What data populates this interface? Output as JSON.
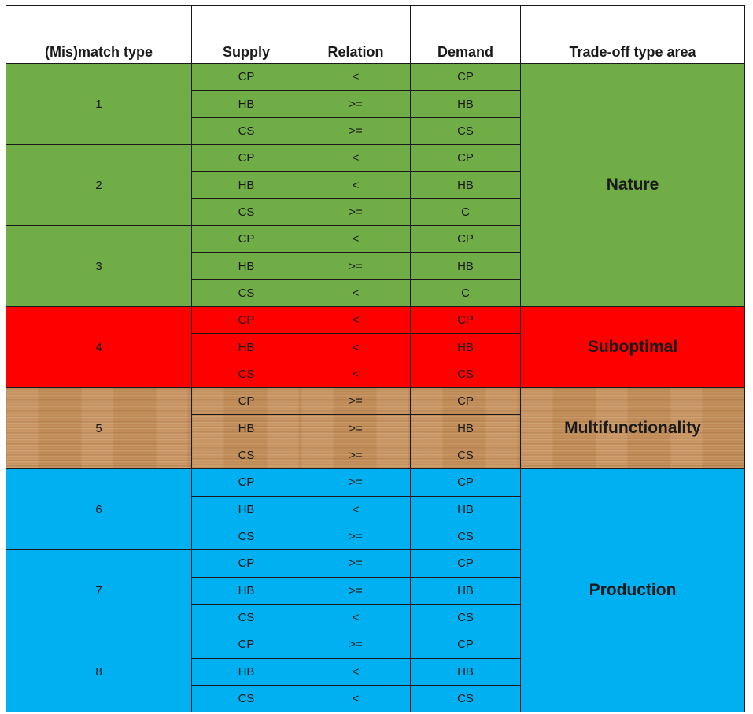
{
  "headers": {
    "mismatch_type": "(Mis)match type",
    "supply": "Supply",
    "relation": "Relation",
    "demand": "Demand",
    "trade_off_area": "Trade-off type area"
  },
  "colors": {
    "Nature": "#70ad47",
    "Suboptimal": "#ff0000",
    "Multifunctionality": "#c8945f",
    "Production": "#00b0f0"
  },
  "area_groups": [
    {
      "area": "Nature",
      "types": [
        {
          "type": "1",
          "rows": [
            {
              "supply": "CP",
              "relation": "<",
              "demand": "CP"
            },
            {
              "supply": "HB",
              "relation": ">=",
              "demand": "HB"
            },
            {
              "supply": "CS",
              "relation": ">=",
              "demand": "CS"
            }
          ]
        },
        {
          "type": "2",
          "rows": [
            {
              "supply": "CP",
              "relation": "<",
              "demand": "CP"
            },
            {
              "supply": "HB",
              "relation": "<",
              "demand": "HB"
            },
            {
              "supply": "CS",
              "relation": ">=",
              "demand": "C"
            }
          ]
        },
        {
          "type": "3",
          "rows": [
            {
              "supply": "CP",
              "relation": "<",
              "demand": "CP"
            },
            {
              "supply": "HB",
              "relation": ">=",
              "demand": "HB"
            },
            {
              "supply": "CS",
              "relation": "<",
              "demand": "C"
            }
          ]
        }
      ]
    },
    {
      "area": "Suboptimal",
      "types": [
        {
          "type": "4",
          "rows": [
            {
              "supply": "CP",
              "relation": "<",
              "demand": "CP"
            },
            {
              "supply": "HB",
              "relation": "<",
              "demand": "HB"
            },
            {
              "supply": "CS",
              "relation": "<",
              "demand": "CS"
            }
          ]
        }
      ]
    },
    {
      "area": "Multifunctionality",
      "types": [
        {
          "type": "5",
          "rows": [
            {
              "supply": "CP",
              "relation": ">=",
              "demand": "CP"
            },
            {
              "supply": "HB",
              "relation": ">=",
              "demand": "HB"
            },
            {
              "supply": "CS",
              "relation": ">=",
              "demand": "CS"
            }
          ]
        }
      ]
    },
    {
      "area": "Production",
      "types": [
        {
          "type": "6",
          "rows": [
            {
              "supply": "CP",
              "relation": ">=",
              "demand": "CP"
            },
            {
              "supply": "HB",
              "relation": "<",
              "demand": "HB"
            },
            {
              "supply": "CS",
              "relation": ">=",
              "demand": "CS"
            }
          ]
        },
        {
          "type": "7",
          "rows": [
            {
              "supply": "CP",
              "relation": ">=",
              "demand": "CP"
            },
            {
              "supply": "HB",
              "relation": ">=",
              "demand": "HB"
            },
            {
              "supply": "CS",
              "relation": "<",
              "demand": "CS"
            }
          ]
        },
        {
          "type": "8",
          "rows": [
            {
              "supply": "CP",
              "relation": ">=",
              "demand": "CP"
            },
            {
              "supply": "HB",
              "relation": "<",
              "demand": "HB"
            },
            {
              "supply": "CS",
              "relation": "<",
              "demand": "CS"
            }
          ]
        }
      ]
    }
  ]
}
